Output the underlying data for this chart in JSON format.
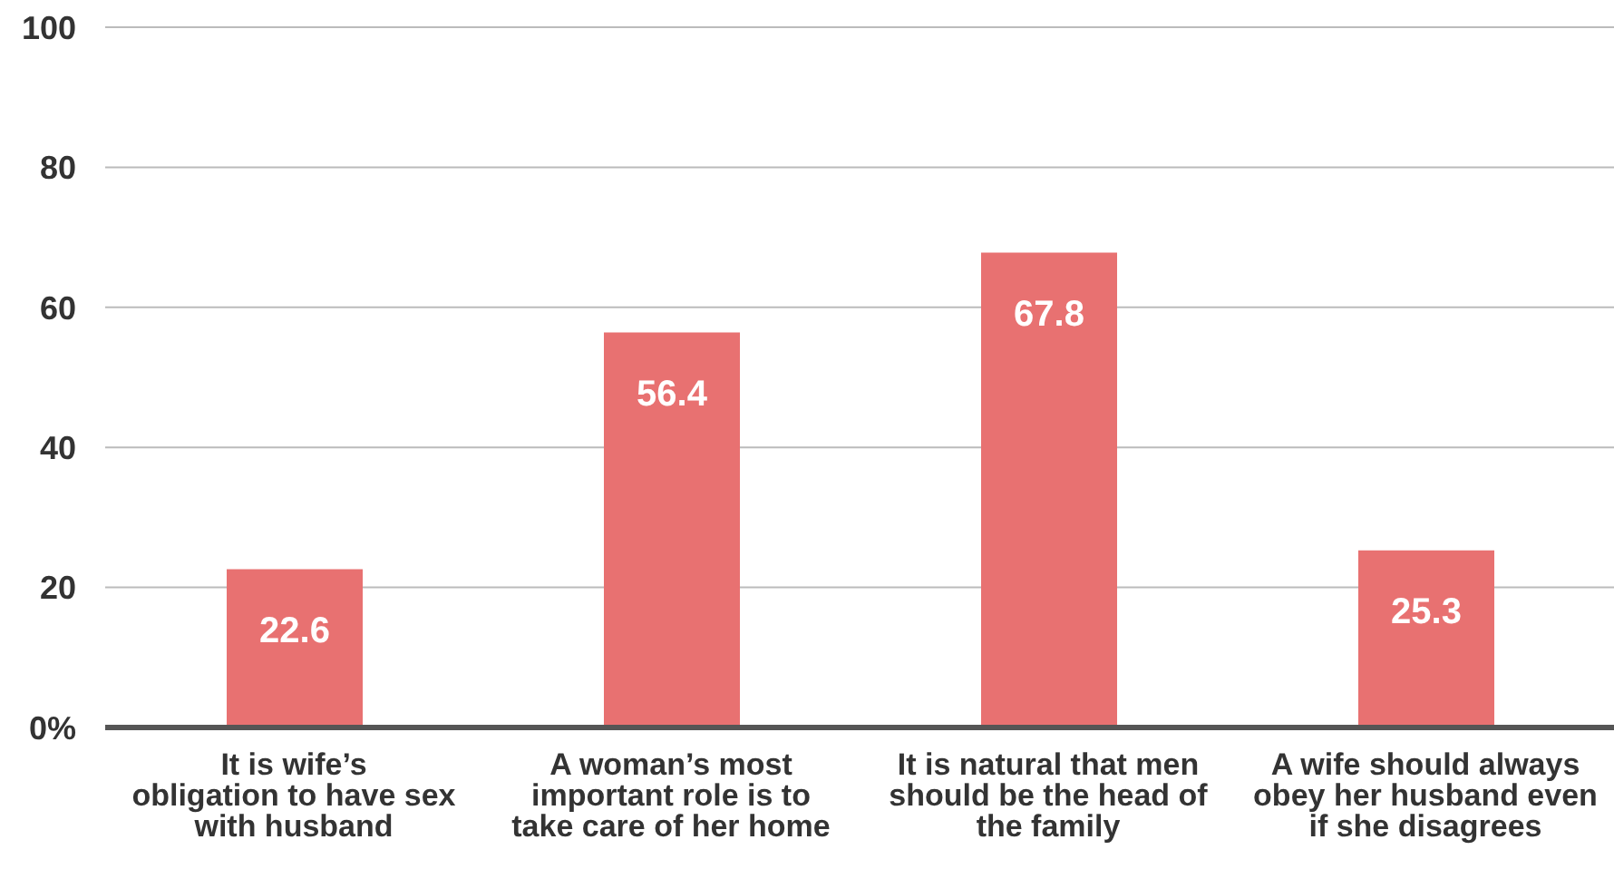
{
  "chart_data": {
    "type": "bar",
    "categories": [
      "It is wife’s obligation to have sex with husband",
      "A woman’s most important role is to take care of her home",
      "It is natural that men should be the head of the family",
      "A wife should always obey her husband even if she disagrees"
    ],
    "values": [
      22.6,
      56.4,
      67.8,
      25.3
    ],
    "color": "#e87171",
    "ylim": [
      0,
      100
    ],
    "yticks": [
      {
        "value": 0,
        "label": "0%"
      },
      20,
      40,
      60,
      80,
      100
    ],
    "grid": "y",
    "data_labels": true
  }
}
